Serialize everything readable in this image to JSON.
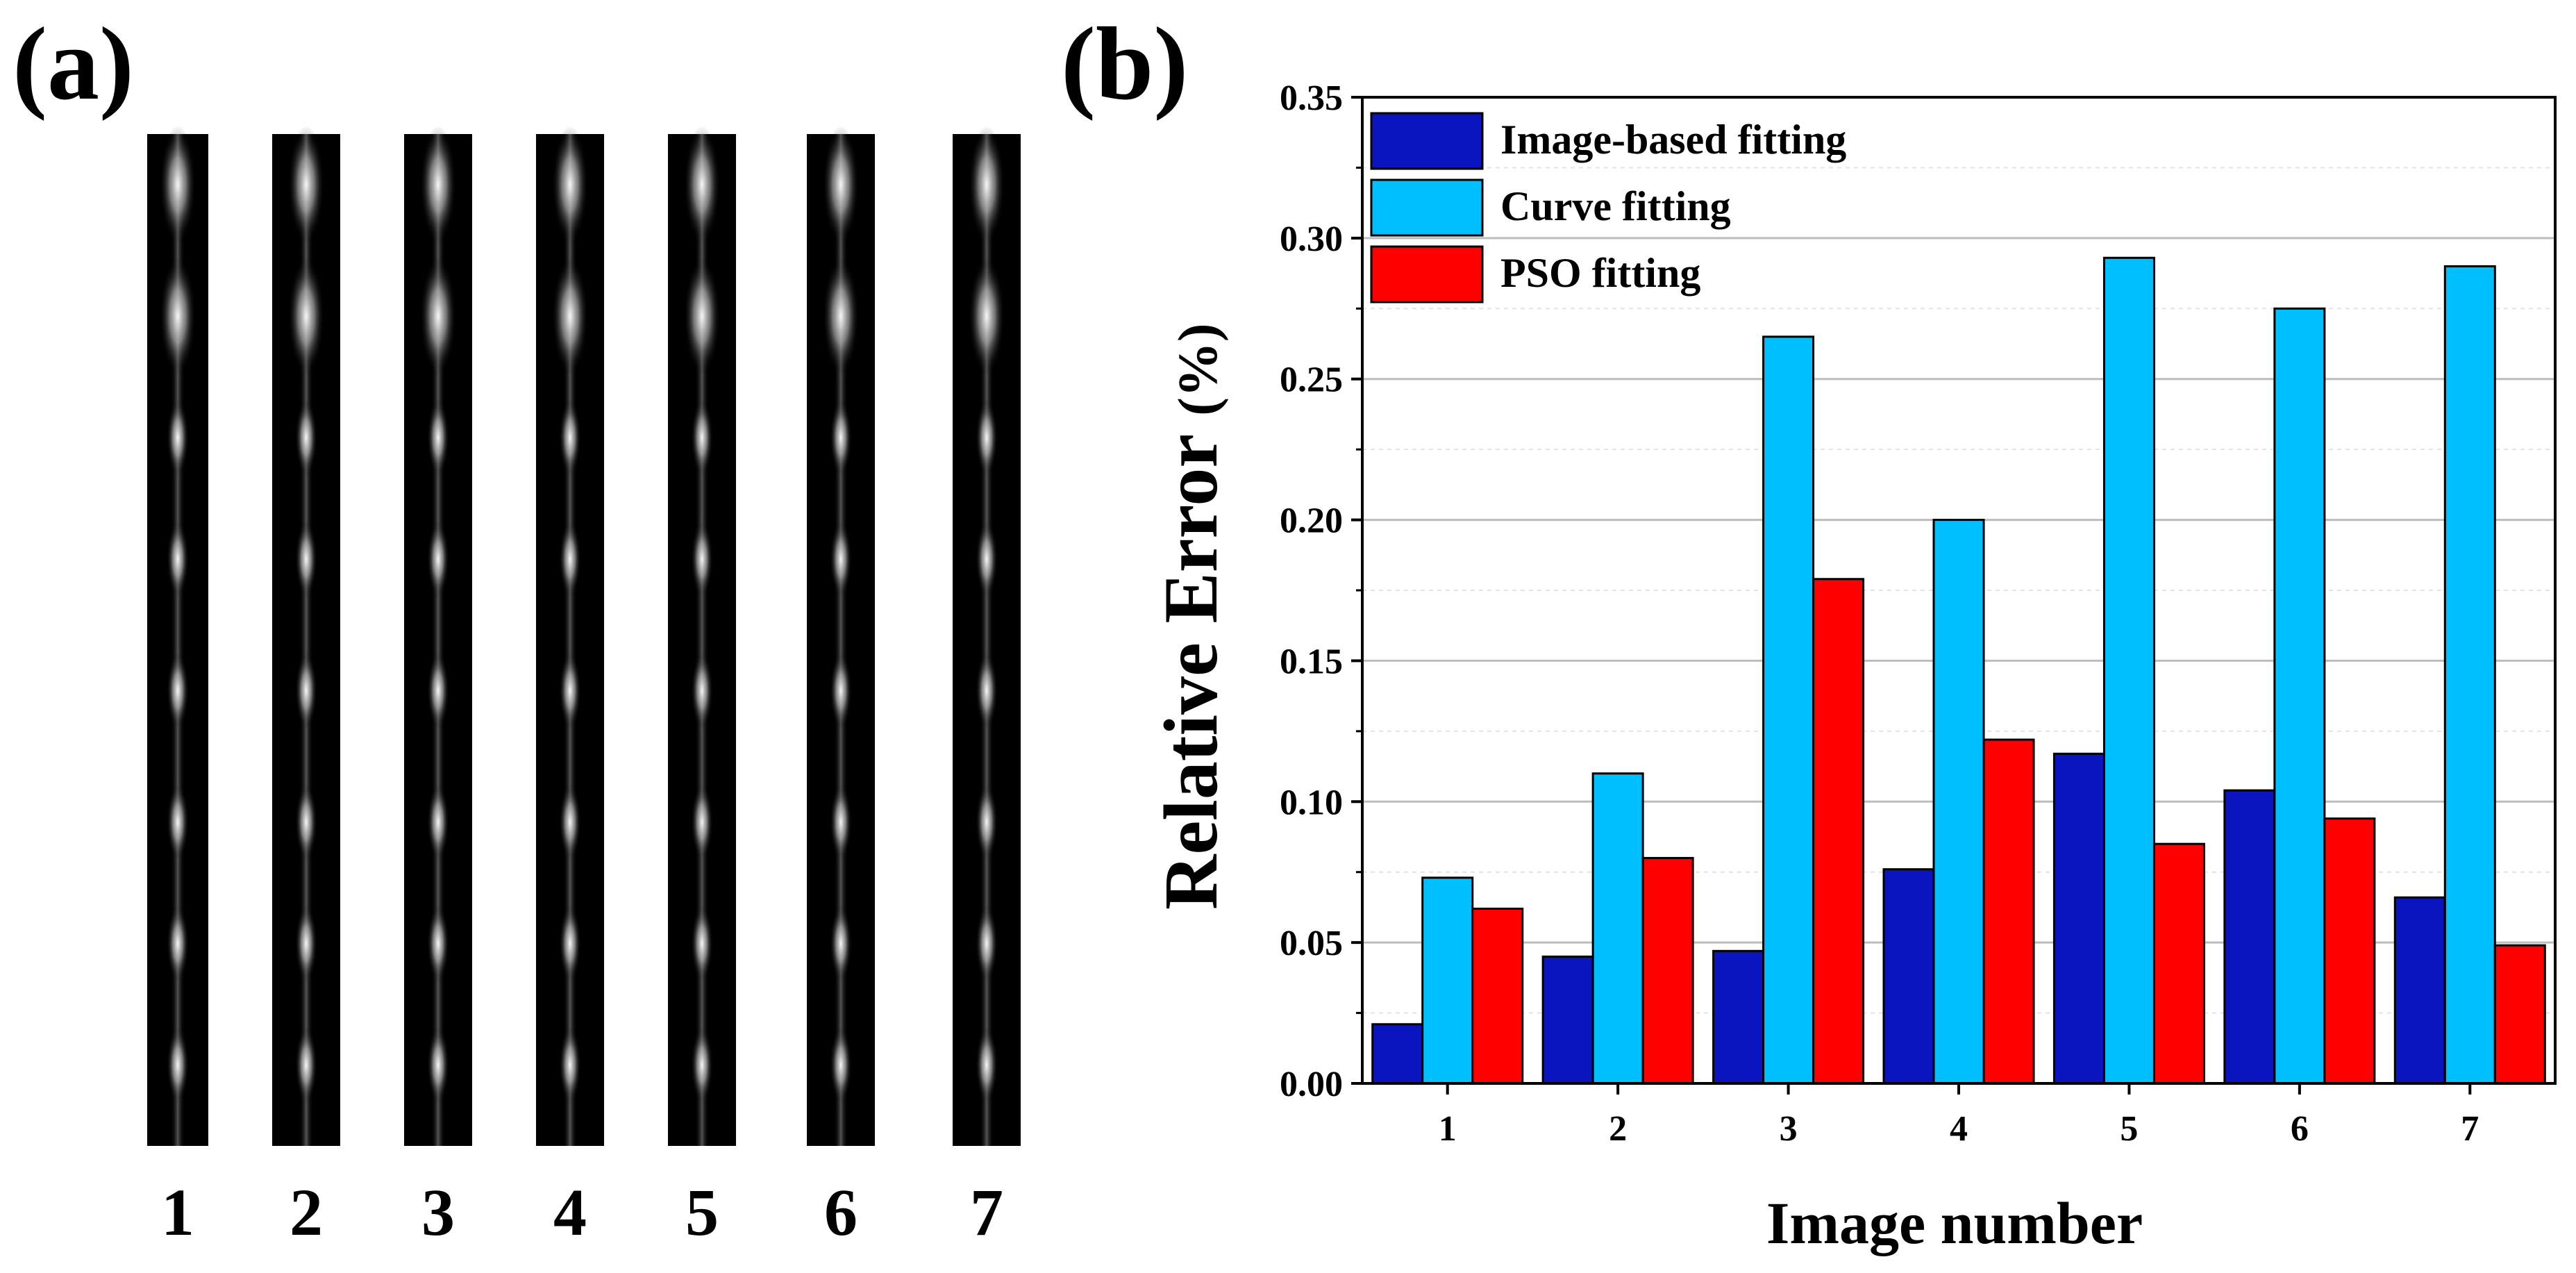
{
  "panel_a": {
    "label": "(a)",
    "image_labels": [
      "1",
      "2",
      "3",
      "4",
      "5",
      "6",
      "7"
    ]
  },
  "panel_b": {
    "label": "(b)"
  },
  "colors": {
    "image_based": "#0a14bf",
    "curve": "#00bfff",
    "pso": "#ff0000",
    "grid": "#cfcfcf"
  },
  "chart_data": {
    "type": "bar",
    "title": "",
    "xlabel": "Image number",
    "ylabel": "Relative Error",
    "ylabel_unit": "(%)",
    "categories": [
      "1",
      "2",
      "3",
      "4",
      "5",
      "6",
      "7"
    ],
    "ylim": [
      0,
      0.35
    ],
    "yticks": [
      "0.00",
      "0.05",
      "0.10",
      "0.15",
      "0.20",
      "0.25",
      "0.30",
      "0.35"
    ],
    "grid": true,
    "legend_position": "top-left",
    "series": [
      {
        "name": "Image-based fitting",
        "color": "#0a14bf",
        "values": [
          0.021,
          0.045,
          0.047,
          0.076,
          0.117,
          0.104,
          0.066
        ]
      },
      {
        "name": "Curve fitting",
        "color": "#00bfff",
        "values": [
          0.073,
          0.11,
          0.265,
          0.2,
          0.293,
          0.275,
          0.29
        ]
      },
      {
        "name": "PSO fitting",
        "color": "#ff0000",
        "values": [
          0.062,
          0.08,
          0.179,
          0.122,
          0.085,
          0.094,
          0.049
        ]
      }
    ]
  }
}
